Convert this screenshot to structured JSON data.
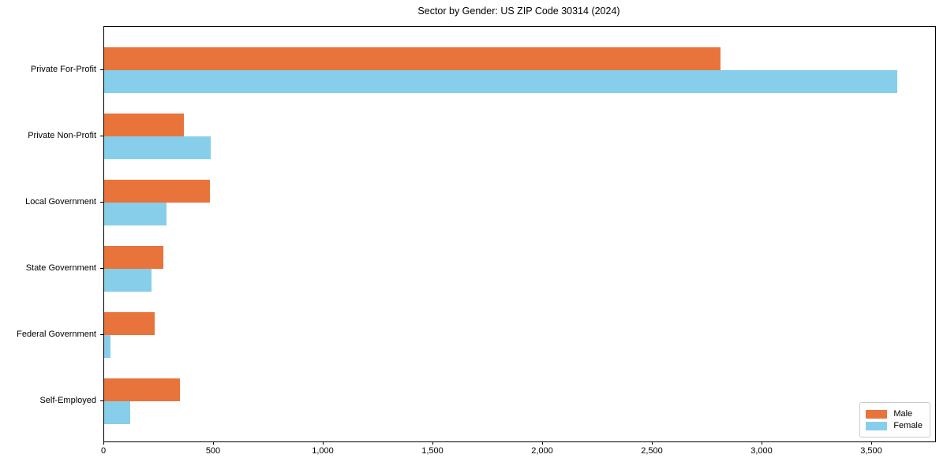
{
  "chart_data": {
    "type": "bar",
    "orientation": "horizontal",
    "title": "Sector by Gender: US ZIP Code 30314 (2024)",
    "categories": [
      "Private For-Profit",
      "Private Non-Profit",
      "Local Government",
      "State Government",
      "Federal Government",
      "Self-Employed"
    ],
    "series": [
      {
        "name": "Male",
        "color": "#E8743B",
        "values": [
          2810,
          362,
          482,
          270,
          230,
          345
        ]
      },
      {
        "name": "Female",
        "color": "#87CEEB",
        "values": [
          3615,
          485,
          285,
          215,
          28,
          120
        ]
      }
    ],
    "xlabel": "",
    "ylabel": "",
    "xlim": [
      0,
      3788
    ],
    "xticks": [
      0,
      500,
      1000,
      1500,
      2000,
      2500,
      3000,
      3500
    ],
    "xtick_labels": [
      "0",
      "500",
      "1,000",
      "1,500",
      "2,000",
      "2,500",
      "3,000",
      "3,500"
    ],
    "legend": {
      "position": "lower-right",
      "entries": [
        "Male",
        "Female"
      ]
    },
    "grid": false,
    "background_color": "#ffffff",
    "axis_color": "#000000"
  }
}
